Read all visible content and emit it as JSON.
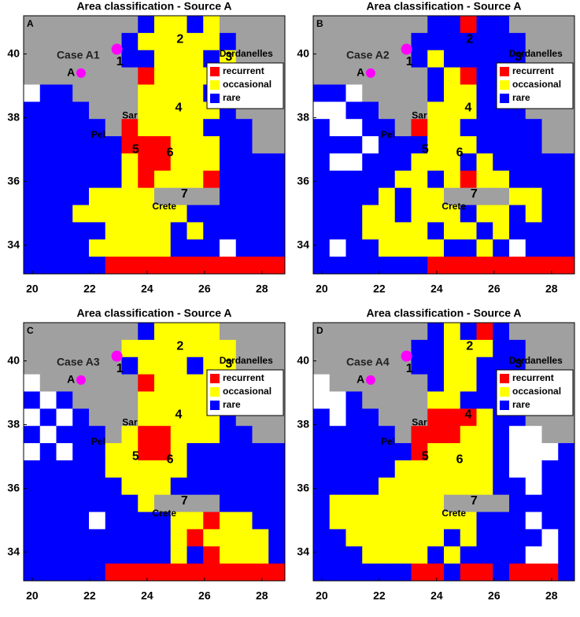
{
  "panels": [
    {
      "title": "Area classification - Source A",
      "letter": "A",
      "case_label": "Case A1",
      "source_label": "A",
      "grid": [
        "GGGGGGGBYYBYGGGG",
        "GGGGGGBYYYYYBGGG",
        "GGGGGGBBYYYBYGGG",
        "GGGGGGGRYYYYBBGG",
        "WBBGGGGYYYYBBGGG",
        "BBBBGGGYYYYYBGGG",
        "BBBBBGRYYYYBBBGG",
        "BBBBBBRRRYYYBBGG",
        "BBBBBBYRRYYYBBBB",
        "BBBBBBYRYYYRBBBB",
        "BBBBYYYYGGGGBBBB",
        "BBBYYYYYYYBBBBBB",
        "BBBBBYYYYBYBBBBB",
        "BBBBYYYYYBBBWBBB",
        "BBBBBRRRRRRRRRRR"
      ]
    },
    {
      "title": "Area classification - Source A",
      "letter": "B",
      "case_label": "Case A2",
      "source_label": "A",
      "grid": [
        "GGGGGGGBBRBBGGGG",
        "GGGGGGBBBBBBBGGG",
        "GGGGGGBYBBBBBGGG",
        "GGGGGGGBYRBBBBGG",
        "BBWGGGGBYYBBBGGG",
        "WWBBGGGYYYBBBGGG",
        "BWWBBGRYYBBBBBGG",
        "BBBWBBBYYYBBBBGG",
        "BWWBBBYYYBYBBBBB",
        "BBBBBYYBYRYYBBBB",
        "BBBBYBYYGGGGYYBB",
        "BBBYYBYYYBYYBYBB",
        "BBBYYYYBYYBYBBBB",
        "BWBBYYYYBBYBWBBB",
        "BBBBBBBRRRRRRRRR"
      ]
    },
    {
      "title": "Area classification - Source A",
      "letter": "C",
      "case_label": "Case A3",
      "source_label": "A",
      "grid": [
        "GGGGGGGBYYYYGGGG",
        "GGGGGGYYYYYYYGGG",
        "GGGGGGBYYYBYYGGG",
        "WGGGGGGRYYYYYBGG",
        "BWBGGGGYYYYYBGGG",
        "WBWBGGGYYYYYBGGG",
        "BWBBBGYRRYYYBBGG",
        "WBWBBYYRRYBBBBBB",
        "BBBBBYYYYYBBBBBB",
        "BBBBBBYYYBBBBBBB",
        "BBBBBBBYGGGGBBBB",
        "BBBBWBBBBYYRYYBB",
        "BBBBBBBBBYRYYYYB",
        "BBBBBBBBBYBRYYYB",
        "BBBBBRRRRRRRRRRR"
      ]
    },
    {
      "title": "Area classification - Source A",
      "letter": "D",
      "case_label": "Case A4",
      "source_label": "A",
      "grid": [
        "GGGGGGGBYBRBGGGG",
        "GGGGGGBBYYYBBGGG",
        "GGGGGGBBYYBBBGGG",
        "WGGGGGGBYYBBBBGG",
        "WWBGGGGYYBBBBGGG",
        "BWBBGGGRRRYBBGGG",
        "BBBBBGRRRYYBWWGG",
        "BBBBBBRYYYYBWWWB",
        "BBBBBYYYYYYBWWBB",
        "BBBBYYYYYYYBBWBB",
        "BYYYYYYYGGGGBBBB",
        "BYYYYYYYYYBBBWBB",
        "BBYYYYYYBYBBBBWB",
        "BBBYYYYBYBBBBWWB",
        "BBBBBBRRBRRBRRRB"
      ]
    }
  ],
  "legend": [
    {
      "name": "recurrent",
      "color": "#ff0000"
    },
    {
      "name": "occasional",
      "color": "#ffff00"
    },
    {
      "name": "rare",
      "color": "#0000ff"
    }
  ],
  "cell_colors": {
    "B": "#0000ff",
    "Y": "#ffff00",
    "R": "#ff0000",
    "W": "#ffffff",
    "G": "#a0a0a0"
  },
  "place_labels": [
    "1",
    "2",
    "3",
    "4",
    "5",
    "6",
    "7",
    "Sar",
    "Pel",
    "Crete",
    "Dardanelles"
  ],
  "lon_range": [
    19.7,
    28.8
  ],
  "lat_range": [
    33.1,
    41.2
  ],
  "xticks": [
    20,
    22,
    24,
    26,
    28
  ],
  "yticks": [
    34,
    36,
    38,
    40
  ]
}
